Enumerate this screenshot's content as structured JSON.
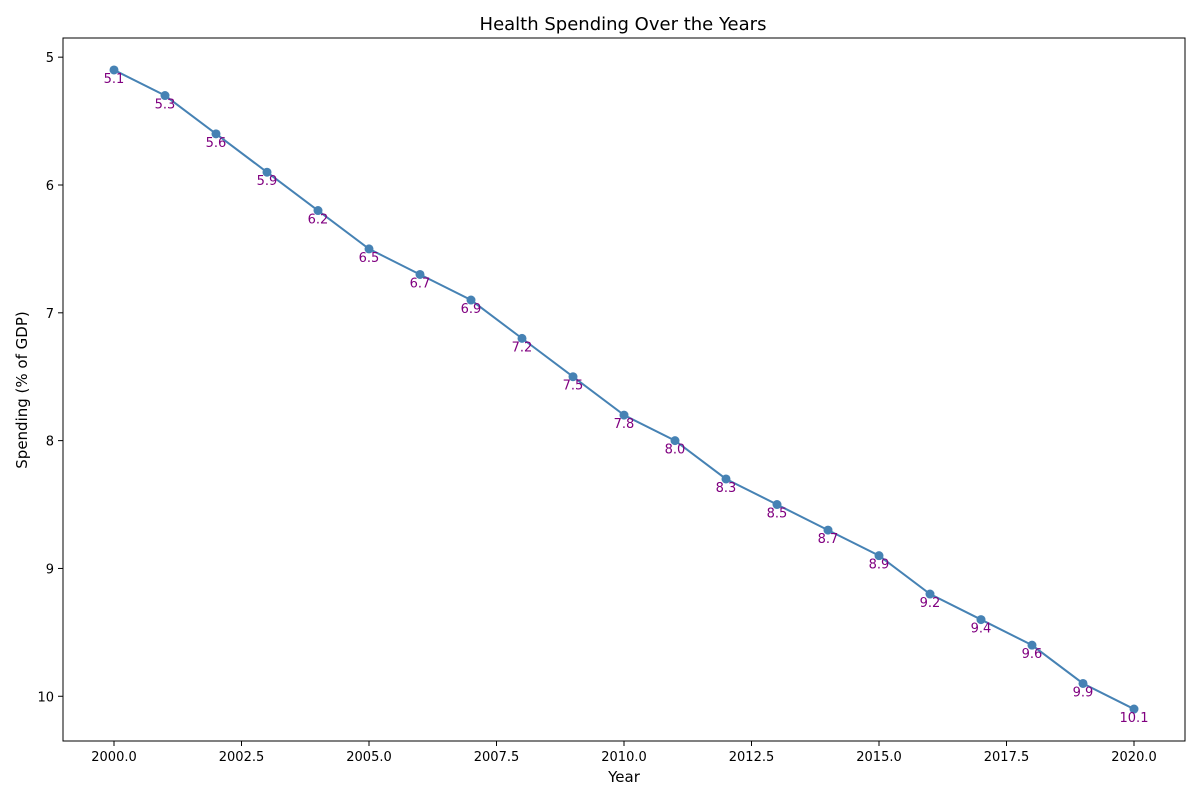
{
  "chart_data": {
    "type": "line",
    "title": "Health Spending Over the Years",
    "xlabel": "Year",
    "ylabel": "Spending (% of GDP)",
    "x": [
      2000,
      2001,
      2002,
      2003,
      2004,
      2005,
      2006,
      2007,
      2008,
      2009,
      2010,
      2011,
      2012,
      2013,
      2014,
      2015,
      2016,
      2017,
      2018,
      2019,
      2020
    ],
    "series": [
      {
        "name": "Health Spending",
        "values": [
          5.1,
          5.3,
          5.6,
          5.9,
          6.2,
          6.5,
          6.7,
          6.9,
          7.2,
          7.5,
          7.8,
          8.0,
          8.3,
          8.5,
          8.7,
          8.9,
          9.2,
          9.4,
          9.6,
          9.9,
          10.1
        ],
        "labels": [
          "5.1",
          "5.3",
          "5.6",
          "5.9",
          "6.2",
          "6.5",
          "6.7",
          "6.9",
          "7.2",
          "7.5",
          "7.8",
          "8.0",
          "8.3",
          "8.5",
          "8.7",
          "8.9",
          "9.2",
          "9.4",
          "9.6",
          "9.9",
          "10.1"
        ]
      }
    ],
    "xlim": [
      1999,
      2021
    ],
    "ylim": [
      4.85,
      10.35
    ],
    "y_inverted": true,
    "xticks": [
      2000.0,
      2002.5,
      2005.0,
      2007.5,
      2010.0,
      2012.5,
      2015.0,
      2017.5,
      2020.0
    ],
    "xtick_labels": [
      "2000.0",
      "2002.5",
      "2005.0",
      "2007.5",
      "2010.0",
      "2012.5",
      "2015.0",
      "2017.5",
      "2020.0"
    ],
    "yticks": [
      5,
      6,
      7,
      8,
      9,
      10
    ],
    "ytick_labels": [
      "5",
      "6",
      "7",
      "8",
      "9",
      "10"
    ],
    "grid": false,
    "colors": {
      "line": "#4682b4",
      "marker": "#4682b4",
      "data_label": "#800080"
    }
  }
}
